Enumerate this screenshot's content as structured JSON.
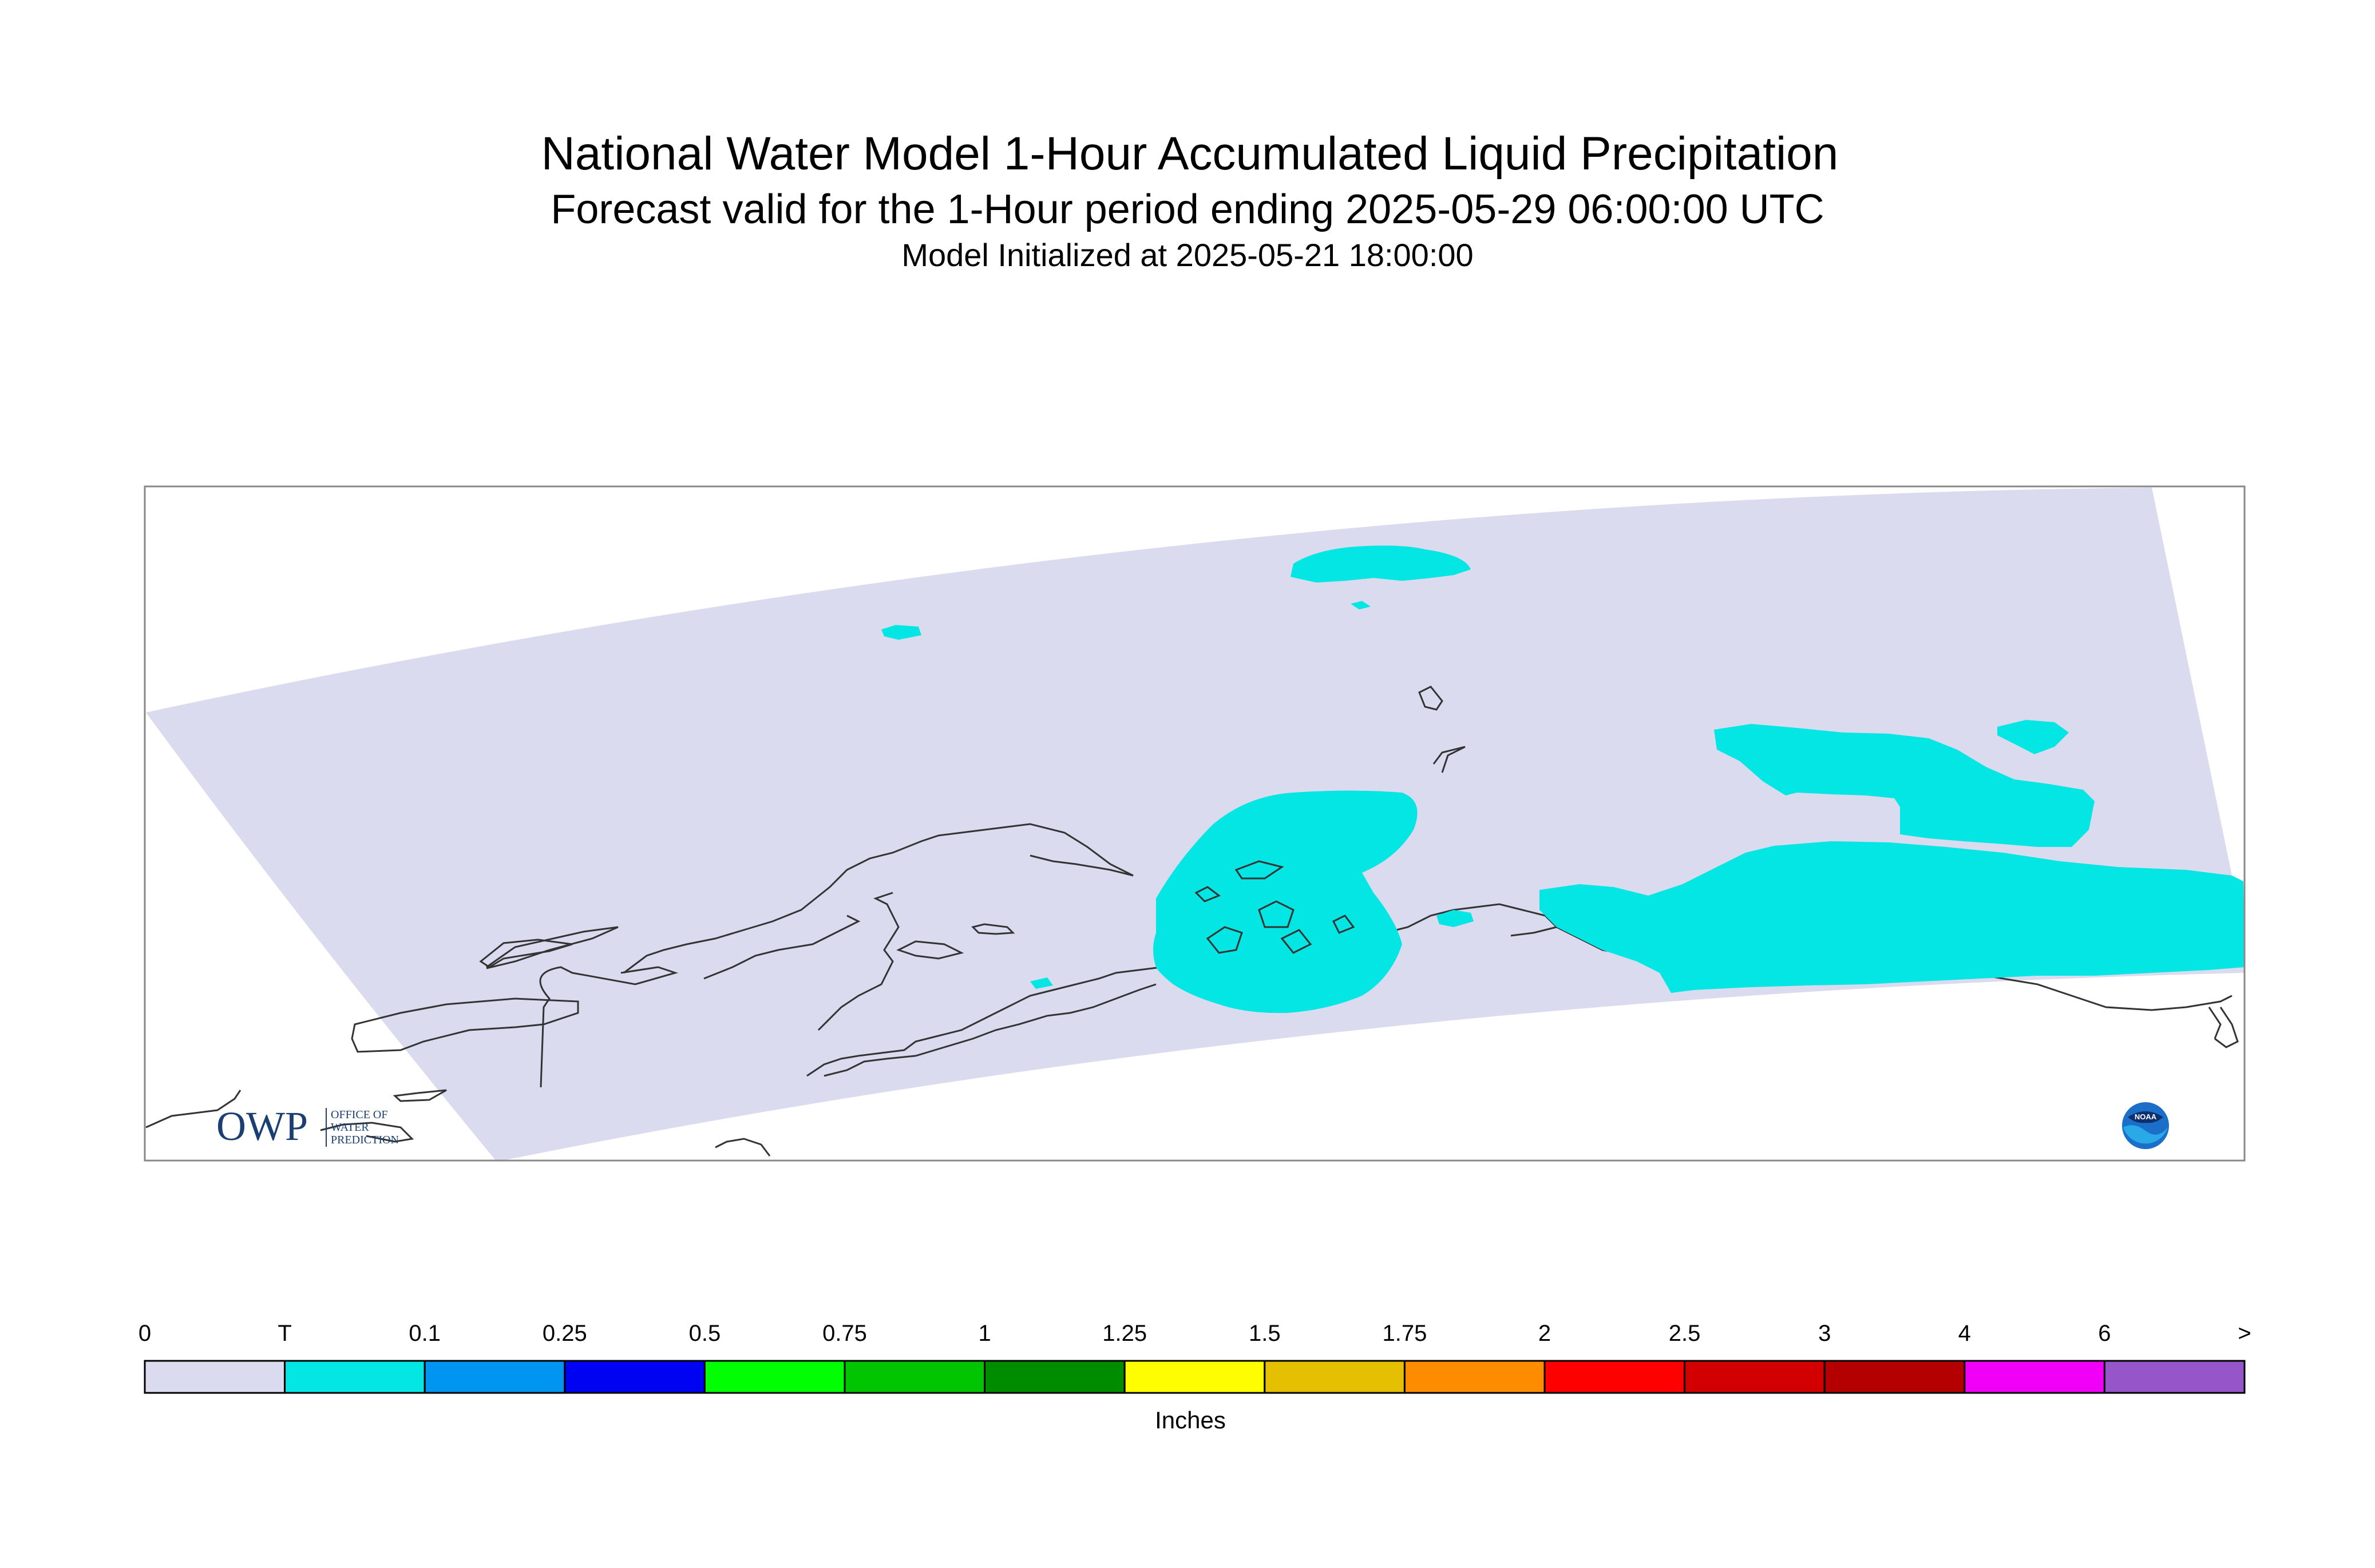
{
  "header": {
    "title": "National Water Model 1-Hour Accumulated Liquid Precipitation",
    "subtitle": "Forecast valid for the 1-Hour period ending 2025-05-29 06:00:00 UTC",
    "init_line": "Model Initialized at 2025-05-21 18:00:00"
  },
  "legend": {
    "unit_label": "Inches",
    "breaks": [
      "0",
      "T",
      "0.1",
      "0.25",
      "0.5",
      "0.75",
      "1",
      "1.25",
      "1.5",
      "1.75",
      "2",
      "2.5",
      "3",
      "4",
      "6",
      ">"
    ],
    "colors": [
      "#dadbee",
      "#04e6e4",
      "#0195f2",
      "#0002f2",
      "#02fe02",
      "#01c501",
      "#008c00",
      "#fefe00",
      "#e5bf01",
      "#fe8c00",
      "#fe0000",
      "#d30000",
      "#b50000",
      "#f100f7",
      "#9655c8"
    ]
  },
  "logos": {
    "owp_mark": "OWP",
    "owp_text": [
      "OFFICE OF",
      "WATER",
      "PREDICTION"
    ],
    "noaa_text": "NOAA"
  },
  "map_colors": {
    "background": "#ffffff",
    "domain_fill": "#dadbee",
    "trace_fill": "#04e6e4",
    "coastline": "#333333",
    "frame": "#888888"
  }
}
